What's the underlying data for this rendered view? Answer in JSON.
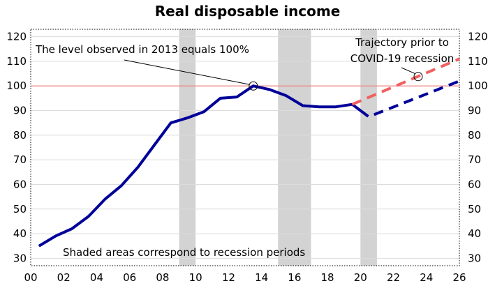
{
  "chart_data": {
    "type": "line",
    "title": "Real disposable income",
    "xlabel": "",
    "ylabel": "",
    "xlim": [
      0,
      26
    ],
    "ylim": [
      27,
      123
    ],
    "x_tick_values": [
      0,
      2,
      4,
      6,
      8,
      10,
      12,
      14,
      16,
      18,
      20,
      22,
      24,
      26
    ],
    "x_tick_labels": [
      "00",
      "02",
      "04",
      "06",
      "08",
      "10",
      "12",
      "14",
      "16",
      "18",
      "20",
      "22",
      "24",
      "26"
    ],
    "y_ticks": [
      30,
      40,
      50,
      60,
      70,
      80,
      90,
      100,
      110,
      120
    ],
    "y_axis_right_mirror": true,
    "grid": {
      "horizontal": true,
      "vertical": false
    },
    "reference_line": {
      "y": 100,
      "color": "#f08080"
    },
    "recession_periods": [
      [
        9,
        10
      ],
      [
        15,
        17
      ],
      [
        20,
        21
      ]
    ],
    "series": [
      {
        "color": "#000099",
        "style": "solid",
        "x": [
          0.5,
          1.5,
          2.5,
          3.5,
          4.5,
          5.5,
          6.5,
          7.5,
          8.5,
          9.5,
          10.5,
          11.5,
          12.5,
          13.5,
          14.5,
          15.5,
          16.5,
          17.5,
          18.5,
          19.5,
          20.0
        ],
        "y": [
          35,
          39,
          42,
          47,
          54,
          59.5,
          67,
          76,
          85,
          87,
          89.5,
          95,
          95.5,
          100,
          98.5,
          96,
          92,
          91.5,
          91.5,
          92.5,
          90
        ]
      },
      {
        "color": "#000099",
        "style": "dashed",
        "x": [
          20.0,
          20.5,
          26.0
        ],
        "y": [
          90,
          87.5,
          102
        ]
      },
      {
        "color": "#f06060",
        "style": "dashed",
        "x": [
          19.5,
          26.0
        ],
        "y": [
          92.5,
          111
        ]
      }
    ],
    "annotations": [
      {
        "text": "The level observed in 2013 equals 100%",
        "target": [
          13.5,
          100
        ]
      },
      {
        "lines": [
          "Trajectory prior to",
          "COVID-19 recession"
        ],
        "target": [
          23.5,
          103.8
        ]
      },
      {
        "text": "Shaded areas correspond to recession periods"
      }
    ]
  }
}
